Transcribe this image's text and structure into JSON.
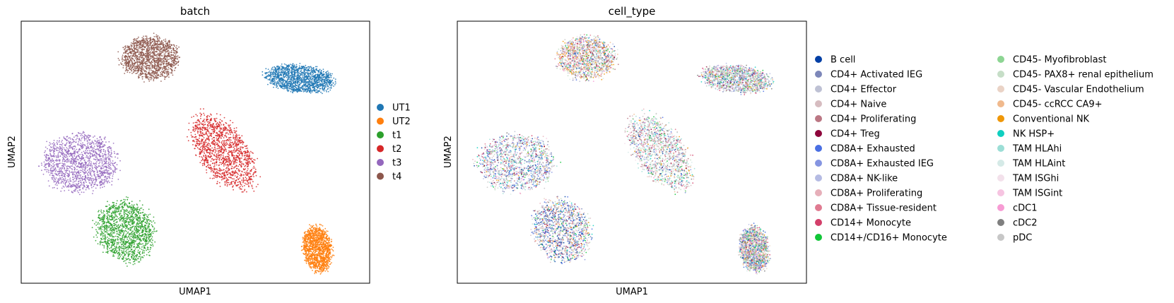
{
  "chart_data": [
    {
      "type": "scatter",
      "title": "batch",
      "xlabel": "UMAP1",
      "ylabel": "UMAP2",
      "legend_placement": "right",
      "clusters": [
        {
          "name": "UT1",
          "color": "#1f77b4",
          "center": [
            0.8,
            0.78
          ],
          "spread": [
            0.11,
            0.055
          ],
          "angle": -10
        },
        {
          "name": "UT2",
          "color": "#ff7f0e",
          "center": [
            0.85,
            0.13
          ],
          "spread": [
            0.045,
            0.095
          ],
          "angle": 5
        },
        {
          "name": "t1",
          "color": "#2ca02c",
          "center": [
            0.3,
            0.2
          ],
          "spread": [
            0.09,
            0.13
          ],
          "angle": 10
        },
        {
          "name": "t2",
          "color": "#d62728",
          "center": [
            0.58,
            0.5
          ],
          "spread": [
            0.08,
            0.17
          ],
          "angle": 25
        },
        {
          "name": "t3",
          "color": "#9467bd",
          "center": [
            0.17,
            0.46
          ],
          "spread": [
            0.12,
            0.12
          ],
          "angle": -30
        },
        {
          "name": "t4",
          "color": "#8c564b",
          "center": [
            0.37,
            0.86
          ],
          "spread": [
            0.09,
            0.09
          ],
          "angle": -15
        }
      ]
    },
    {
      "type": "scatter",
      "title": "cell_type",
      "xlabel": "UMAP1",
      "ylabel": "UMAP2",
      "legend_placement": "right",
      "legend_columns": 2,
      "categories": [
        {
          "name": "B cell",
          "color": "#023fa5"
        },
        {
          "name": "CD4+ Activated IEG",
          "color": "#7d87b9"
        },
        {
          "name": "CD4+ Effector",
          "color": "#bec1d4"
        },
        {
          "name": "CD4+ Naive",
          "color": "#d6bcc0"
        },
        {
          "name": "CD4+ Proliferating",
          "color": "#bb7784"
        },
        {
          "name": "CD4+ Treg",
          "color": "#8e063b"
        },
        {
          "name": "CD8A+ Exhausted",
          "color": "#4a6fe3"
        },
        {
          "name": "CD8A+ Exhausted IEG",
          "color": "#8595e1"
        },
        {
          "name": "CD8A+ NK-like",
          "color": "#b5bbe3"
        },
        {
          "name": "CD8A+ Proliferating",
          "color": "#e6afb9"
        },
        {
          "name": "CD8A+ Tissue-resident",
          "color": "#e07b91"
        },
        {
          "name": "CD14+ Monocyte",
          "color": "#d33f6a"
        },
        {
          "name": "CD14+/CD16+ Monocyte",
          "color": "#11c638"
        },
        {
          "name": "CD45- Myofibroblast",
          "color": "#8dd593"
        },
        {
          "name": "CD45- PAX8+ renal epithelium",
          "color": "#c6dec7"
        },
        {
          "name": "CD45- Vascular Endothelium",
          "color": "#ead3c6"
        },
        {
          "name": "CD45- ccRCC CA9+",
          "color": "#f0b98d"
        },
        {
          "name": "Conventional NK",
          "color": "#ef9708"
        },
        {
          "name": "NK HSP+",
          "color": "#0fcfc0"
        },
        {
          "name": "TAM HLAhi",
          "color": "#9cded6"
        },
        {
          "name": "TAM HLAint",
          "color": "#d5eae7"
        },
        {
          "name": "TAM ISGhi",
          "color": "#f3e1eb"
        },
        {
          "name": "TAM ISGint",
          "color": "#f6c4e1"
        },
        {
          "name": "cDC1",
          "color": "#f79cd4"
        },
        {
          "name": "cDC2",
          "color": "#7f7f7f"
        },
        {
          "name": "pDC",
          "color": "#c7c7c7"
        }
      ],
      "clusters": [
        {
          "center": [
            0.8,
            0.78
          ],
          "spread": [
            0.11,
            0.055
          ],
          "angle": -10,
          "dominant": [
            "CD45- PAX8+ renal epithelium",
            "CD4+ Effector",
            "CD8A+ NK-like",
            "CD45- Myofibroblast",
            "CD4+ Activated IEG"
          ]
        },
        {
          "center": [
            0.85,
            0.13
          ],
          "spread": [
            0.045,
            0.095
          ],
          "angle": 5,
          "dominant": [
            "CD45- ccRCC CA9+",
            "CD45- Vascular Endothelium",
            "CD45- Myofibroblast",
            "CD4+ Activated IEG",
            "CD8A+ Exhausted"
          ]
        },
        {
          "center": [
            0.3,
            0.2
          ],
          "spread": [
            0.09,
            0.13
          ],
          "angle": 10,
          "dominant": [
            "CD8A+ Exhausted",
            "CD4+ Activated IEG",
            "CD4+ Naive",
            "CD45- PAX8+ renal epithelium",
            "B cell"
          ]
        },
        {
          "center": [
            0.58,
            0.5
          ],
          "spread": [
            0.08,
            0.17
          ],
          "angle": 25,
          "dominant": [
            "CD45- PAX8+ renal epithelium",
            "TAM HLAhi",
            "CD4+ Naive",
            "CD4+ Proliferating",
            "TAM HLAint"
          ]
        },
        {
          "center": [
            0.17,
            0.46
          ],
          "spread": [
            0.12,
            0.12
          ],
          "angle": -30,
          "dominant": [
            "CD8A+ Exhausted",
            "CD4+ Activated IEG",
            "CD8A+ NK-like",
            "TAM HLAhi",
            "CD4+ Naive"
          ]
        },
        {
          "center": [
            0.37,
            0.86
          ],
          "spread": [
            0.09,
            0.09
          ],
          "angle": -15,
          "dominant": [
            "Conventional NK",
            "CD45- ccRCC CA9+",
            "CD45- PAX8+ renal epithelium",
            "CD8A+ Tissue-resident",
            "CD4+ Effector"
          ]
        }
      ]
    }
  ]
}
